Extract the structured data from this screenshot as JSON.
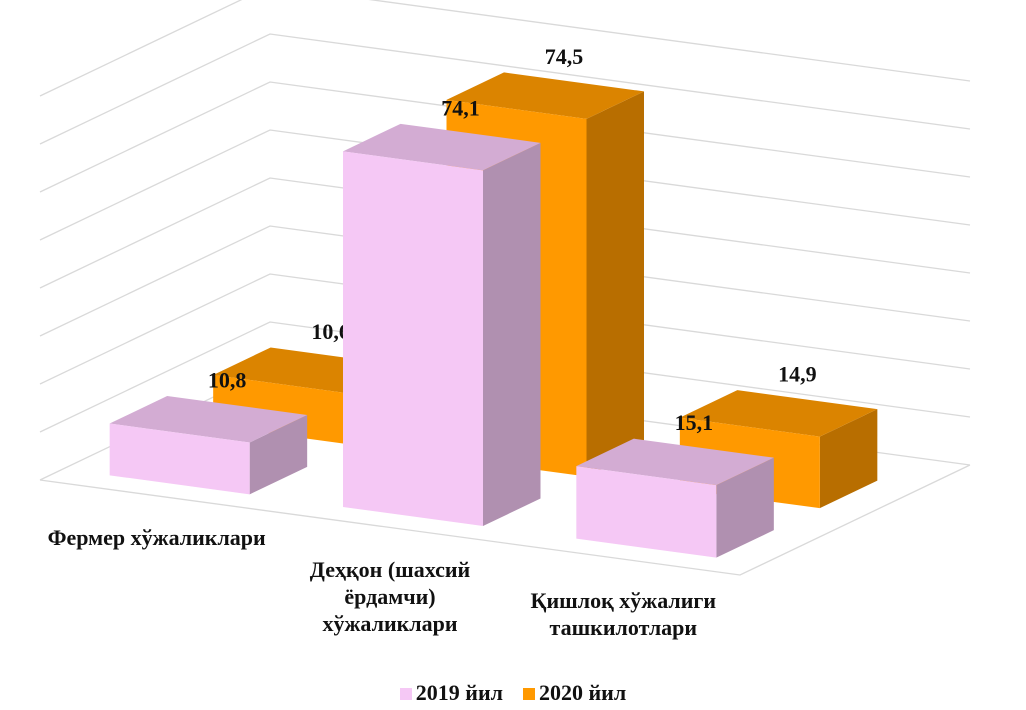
{
  "chart_data": {
    "type": "bar3d",
    "categories": [
      "Фермер хўжаликлари",
      "Деҳқон (шахсий ёрдамчи) хўжаликлари",
      "Қишлоқ хўжалиги ташкилотлари"
    ],
    "series": [
      {
        "name": "2019 йил",
        "color": "#f5c8f5",
        "values": [
          10.8,
          74.1,
          15.1
        ],
        "value_labels": [
          "10,8",
          "74,1",
          "15,1"
        ]
      },
      {
        "name": "2020 йил",
        "color": "#ff9900",
        "values": [
          10.6,
          74.5,
          14.9
        ],
        "value_labels": [
          "10,6",
          "74,5",
          "14,9"
        ]
      }
    ],
    "ylim": [
      0,
      80
    ],
    "yticks": [
      0,
      10,
      20,
      30,
      40,
      50,
      60,
      70,
      80
    ],
    "grid": true
  }
}
